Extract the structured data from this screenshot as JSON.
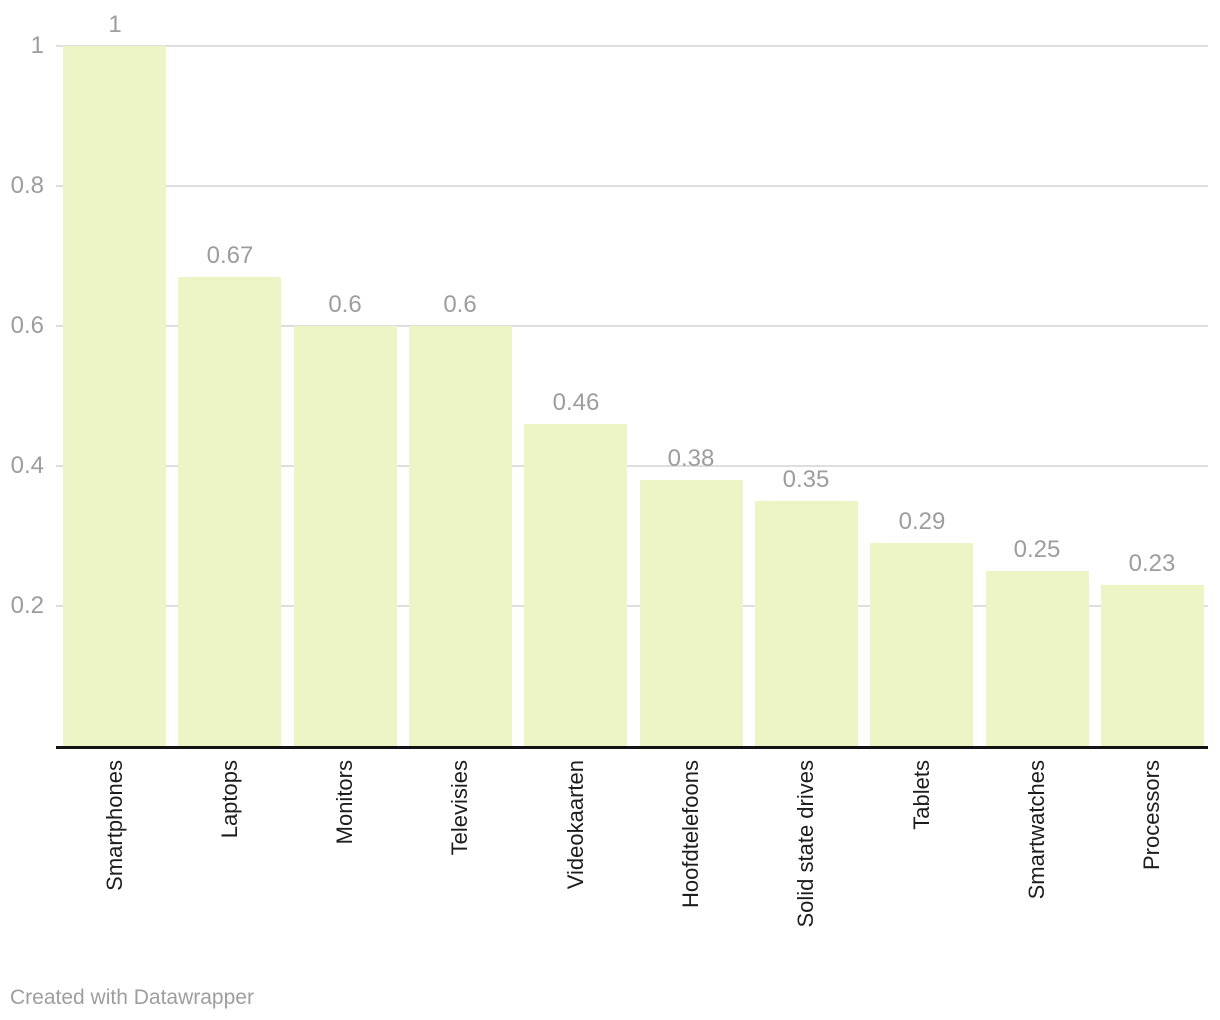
{
  "chart_data": {
    "type": "bar",
    "categories": [
      "Smartphones",
      "Laptops",
      "Monitors",
      "Televisies",
      "Videokaarten",
      "Hoofdtelefoons",
      "Solid state drives",
      "Tablets",
      "Smartwatches",
      "Processors"
    ],
    "values": [
      1,
      0.67,
      0.6,
      0.6,
      0.46,
      0.38,
      0.35,
      0.29,
      0.25,
      0.23
    ],
    "value_labels": [
      "1",
      "0.67",
      "0.6",
      "0.6",
      "0.46",
      "0.38",
      "0.35",
      "0.29",
      "0.25",
      "0.23"
    ],
    "y_ticks": [
      {
        "value": 1,
        "label": "1"
      },
      {
        "value": 0.8,
        "label": "0.8"
      },
      {
        "value": 0.6,
        "label": "0.6"
      },
      {
        "value": 0.4,
        "label": "0.4"
      },
      {
        "value": 0.2,
        "label": "0.2"
      }
    ],
    "ylim": [
      0,
      1
    ],
    "grid": true,
    "legend": "none",
    "xlabel": "",
    "ylabel": "",
    "colors": {
      "bar_fill": "#edf5c6",
      "gridline": "#dedede",
      "axis_line": "#131313",
      "tick_text": "#9d9d9d",
      "value_label_text": "#9d9d9d",
      "category_text": "#1d1d1d",
      "credit_text": "#9e9e9e"
    }
  },
  "footer": {
    "credit": "Created with Datawrapper"
  }
}
